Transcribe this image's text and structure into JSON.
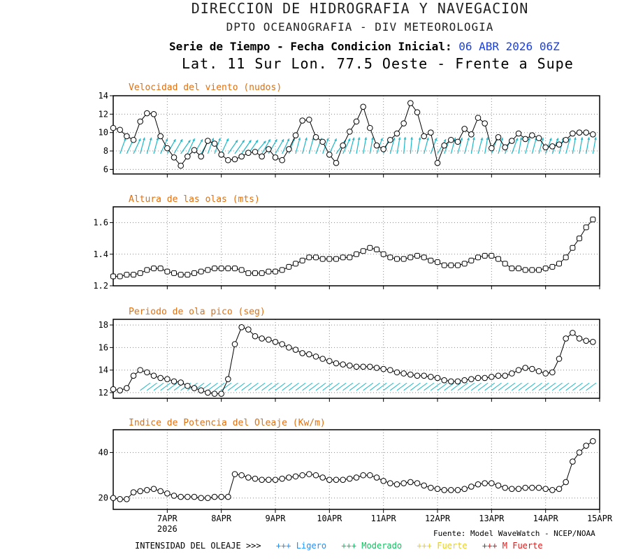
{
  "header": {
    "title": "DIRECCION DE HIDROGRAFIA Y NAVEGACION",
    "subtitle": "DPTO OCEANOGRAFIA - DIV METEOROLOGIA",
    "series_label": "Serie de Tiempo - Fecha Condicion Inicial:",
    "init_date": "06 ABR 2026 06Z",
    "location": "Lat. 11 Sur  Lon. 77.5 Oeste - Frente a Supe"
  },
  "colors": {
    "panel_title": "#e07010",
    "arrows": "#20b8c8",
    "date_blue": "#1a3fe0"
  },
  "x_axis": {
    "ticks": [
      "7APR",
      "8APR",
      "9APR",
      "10APR",
      "11APR",
      "12APR",
      "13APR",
      "14APR",
      "15APR"
    ],
    "tick_positions_days": [
      1,
      2,
      3,
      4,
      5,
      6,
      7,
      8,
      9
    ],
    "year": "2026",
    "range_days": [
      0.0,
      9.0
    ],
    "step_hours": 3
  },
  "chart_data": [
    {
      "type": "line",
      "title": "Velocidad del viento (nudos)",
      "ylim": [
        5.5,
        14
      ],
      "yticks": [
        "6",
        "8",
        "10",
        "12",
        "14"
      ],
      "ytick_values": [
        6,
        8,
        10,
        12,
        14
      ],
      "values": [
        10.5,
        10.3,
        9.6,
        9.2,
        11.2,
        12.1,
        12.0,
        9.6,
        8.3,
        7.3,
        6.4,
        7.4,
        8.1,
        7.4,
        9.1,
        8.8,
        7.6,
        7.0,
        7.1,
        7.4,
        7.8,
        7.9,
        7.4,
        8.2,
        7.3,
        7.0,
        8.2,
        9.7,
        11.3,
        11.4,
        9.5,
        9.0,
        7.6,
        6.7,
        8.6,
        10.1,
        11.2,
        12.8,
        10.5,
        8.6,
        8.2,
        9.2,
        9.9,
        11.0,
        13.2,
        12.2,
        9.6,
        10.0,
        6.7,
        8.6,
        9.2,
        9.0,
        10.4,
        9.8,
        11.6,
        11.0,
        8.3,
        9.5,
        8.4,
        9.1,
        9.9,
        9.3,
        9.7,
        9.4,
        8.4,
        8.5,
        8.7,
        9.2,
        9.9,
        10.0,
        10.0,
        9.8
      ],
      "wind_dir_from_deg": [
        200,
        200,
        205,
        205,
        195,
        195,
        195,
        205,
        210,
        210,
        215,
        205,
        210,
        210,
        200,
        200,
        205,
        215,
        215,
        215,
        215,
        220,
        210,
        210,
        210,
        205,
        200,
        195,
        195,
        195,
        200,
        200,
        205,
        215,
        205,
        195,
        190,
        190,
        190,
        200,
        200,
        195,
        190,
        185,
        185,
        190,
        195,
        200,
        210,
        200,
        195,
        195,
        195,
        190,
        195,
        190,
        200,
        195,
        200,
        200,
        190,
        195,
        195,
        195,
        200,
        200,
        195,
        195,
        190,
        190,
        190,
        190
      ]
    },
    {
      "type": "line",
      "title": "Altura de las olas (mts)",
      "ylim": [
        1.2,
        1.7
      ],
      "yticks": [
        "1.2",
        "1.4",
        "1.6"
      ],
      "ytick_values": [
        1.2,
        1.4,
        1.6
      ],
      "values": [
        1.26,
        1.26,
        1.27,
        1.27,
        1.28,
        1.3,
        1.31,
        1.31,
        1.29,
        1.28,
        1.27,
        1.27,
        1.28,
        1.29,
        1.3,
        1.31,
        1.31,
        1.31,
        1.31,
        1.3,
        1.28,
        1.28,
        1.28,
        1.29,
        1.29,
        1.3,
        1.32,
        1.34,
        1.36,
        1.38,
        1.38,
        1.37,
        1.37,
        1.37,
        1.38,
        1.38,
        1.4,
        1.42,
        1.44,
        1.43,
        1.4,
        1.38,
        1.37,
        1.37,
        1.38,
        1.39,
        1.38,
        1.36,
        1.35,
        1.33,
        1.33,
        1.33,
        1.34,
        1.36,
        1.38,
        1.39,
        1.39,
        1.37,
        1.34,
        1.31,
        1.31,
        1.3,
        1.3,
        1.3,
        1.31,
        1.32,
        1.34,
        1.38,
        1.44,
        1.5,
        1.57,
        1.62
      ]
    },
    {
      "type": "line",
      "title": "Periodo de ola pico (seg)",
      "ylim": [
        11.5,
        18.5
      ],
      "yticks": [
        "12",
        "14",
        "16",
        "18"
      ],
      "ytick_values": [
        12,
        14,
        16,
        18
      ],
      "values": [
        12.3,
        12.2,
        12.4,
        13.5,
        14.0,
        13.8,
        13.5,
        13.3,
        13.2,
        13.0,
        12.9,
        12.6,
        12.4,
        12.2,
        12.0,
        11.9,
        11.9,
        13.2,
        16.3,
        17.8,
        17.6,
        17.0,
        16.8,
        16.7,
        16.5,
        16.3,
        16.0,
        15.8,
        15.5,
        15.4,
        15.2,
        15.0,
        14.8,
        14.6,
        14.5,
        14.4,
        14.3,
        14.3,
        14.3,
        14.2,
        14.1,
        14.0,
        13.8,
        13.7,
        13.6,
        13.5,
        13.5,
        13.4,
        13.3,
        13.1,
        13.0,
        13.0,
        13.1,
        13.2,
        13.3,
        13.3,
        13.4,
        13.5,
        13.5,
        13.7,
        14.0,
        14.2,
        14.1,
        13.9,
        13.7,
        13.8,
        15.0,
        16.8,
        17.3,
        16.8,
        16.6,
        16.5
      ],
      "swell_dir_from_deg": [
        225,
        225,
        225,
        225,
        225,
        225,
        225,
        225,
        225,
        225,
        225,
        225,
        225,
        225,
        225,
        225,
        225,
        225,
        225,
        225,
        225,
        225,
        225,
        225,
        225,
        225,
        225,
        225,
        225,
        225,
        225,
        225,
        225,
        225,
        225,
        225,
        225,
        225,
        225,
        225,
        225,
        225,
        225,
        225,
        225,
        225,
        225,
        225,
        225,
        225,
        225,
        225,
        225,
        225,
        225,
        225,
        225,
        225,
        225,
        225,
        225,
        225,
        225,
        225,
        225,
        225,
        225,
        225,
        225,
        225,
        225,
        225
      ]
    },
    {
      "type": "line",
      "title": "Indice de Potencia del Oleaje (Kw/m)",
      "ylim": [
        15.0,
        50.0
      ],
      "yticks": [
        "20",
        "40"
      ],
      "ytick_values": [
        20,
        40
      ],
      "values": [
        20,
        19.5,
        19.5,
        22.5,
        23,
        23.5,
        24,
        23,
        22,
        21,
        20.5,
        20.5,
        20.5,
        20,
        20,
        20.5,
        20.5,
        20.5,
        30.5,
        30,
        29,
        28.5,
        28,
        28,
        28,
        28.5,
        29,
        29.5,
        30,
        30.5,
        30,
        29,
        28,
        28,
        28,
        28.5,
        29,
        30,
        30,
        29,
        27.5,
        26.5,
        26,
        26.5,
        27,
        26.5,
        25.5,
        24.5,
        24,
        23.5,
        23.5,
        23.5,
        24,
        25,
        26,
        26.5,
        26.5,
        25.5,
        24.5,
        24,
        24,
        24.5,
        24.5,
        24.5,
        24,
        23.5,
        24,
        27,
        36,
        40,
        43,
        45
      ]
    }
  ],
  "legend": {
    "label": "INTENSIDAD DEL OLEAJE >>>",
    "items": [
      {
        "marker": "+++",
        "text": "Ligero",
        "color": "#1e90ff"
      },
      {
        "marker": "+++",
        "text": "Moderado",
        "color": "#10c060"
      },
      {
        "marker": "+++",
        "text": "Fuerte",
        "color": "#e8d020"
      },
      {
        "marker": "+++",
        "text": "M Fuerte",
        "color": "#e01818"
      }
    ]
  },
  "source": "Fuente: Model WaveWatch - NCEP/NOAA"
}
